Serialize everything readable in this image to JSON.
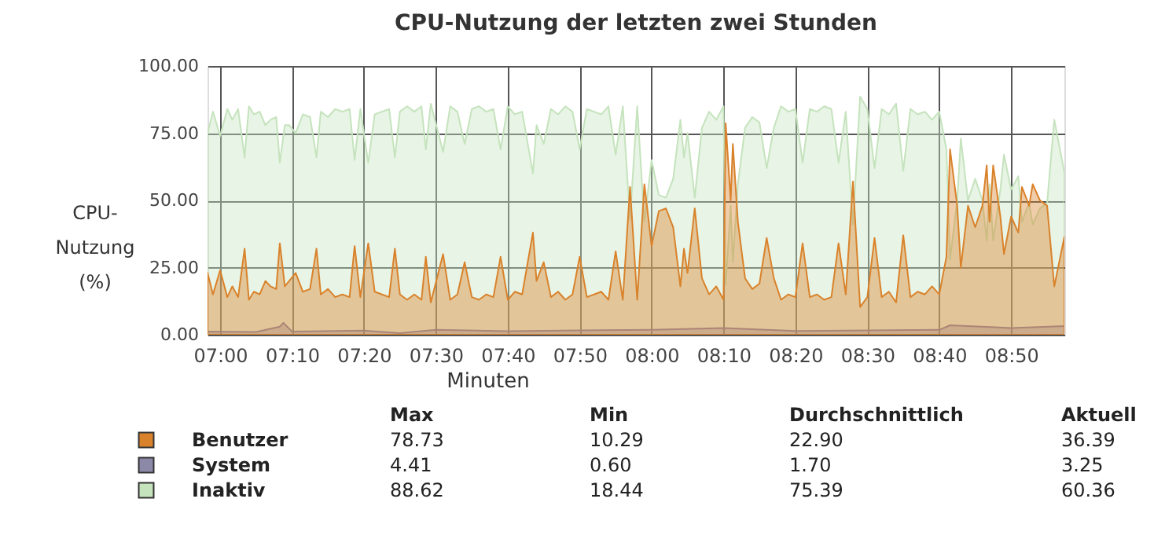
{
  "chart_data": {
    "type": "area",
    "title": "CPU-Nutzung der letzten zwei Stunden",
    "xlabel": "Minuten",
    "ylabel": "CPU-Nutzung (%)",
    "xlim": [
      6.9708,
      8.9567
    ],
    "ylim": [
      0,
      100
    ],
    "xticks": [
      {
        "value": 7,
        "label": "07:00"
      },
      {
        "value": 7.1667,
        "label": "07:10"
      },
      {
        "value": 7.3333,
        "label": "07:20"
      },
      {
        "value": 7.5,
        "label": "07:30"
      },
      {
        "value": 7.6667,
        "label": "07:40"
      },
      {
        "value": 7.8333,
        "label": "07:50"
      },
      {
        "value": 8,
        "label": "08:00"
      },
      {
        "value": 8.1667,
        "label": "08:10"
      },
      {
        "value": 8.3333,
        "label": "08:20"
      },
      {
        "value": 8.5,
        "label": "08:30"
      },
      {
        "value": 8.6667,
        "label": "08:40"
      },
      {
        "value": 8.8333,
        "label": "08:50"
      }
    ],
    "yticks": [
      {
        "value": 0,
        "label": "0.00"
      },
      {
        "value": 25,
        "label": "25.00"
      },
      {
        "value": 50,
        "label": "50.00"
      },
      {
        "value": 75,
        "label": "75.00"
      },
      {
        "value": 100,
        "label": "100.00"
      }
    ],
    "grid": true,
    "legend": "bottom",
    "x": [
      6.9708,
      6.9833,
      7,
      7.0167,
      7.0283,
      7.0417,
      7.0567,
      7.0667,
      7.0783,
      7.0917,
      7.105,
      7.1167,
      7.13,
      7.1383,
      7.15,
      7.16,
      7.175,
      7.1917,
      7.2083,
      7.2233,
      7.2333,
      7.25,
      7.2667,
      7.2833,
      7.3,
      7.3117,
      7.325,
      7.3433,
      7.3583,
      7.375,
      7.3917,
      7.405,
      7.4167,
      7.4333,
      7.45,
      7.4667,
      7.4767,
      7.4883,
      7.5167,
      7.5333,
      7.55,
      7.5667,
      7.5833,
      7.6,
      7.6167,
      7.6333,
      7.65,
      7.6667,
      7.6833,
      7.7,
      7.725,
      7.7333,
      7.75,
      7.7667,
      7.7833,
      7.8,
      7.8167,
      7.8333,
      7.85,
      7.8667,
      7.8833,
      7.9,
      7.9167,
      7.9333,
      7.95,
      7.9667,
      7.9833,
      8,
      8.0167,
      8.0333,
      8.05,
      8.0667,
      8.075,
      8.0833,
      8.1,
      8.1167,
      8.1333,
      8.15,
      8.1667,
      8.1717,
      8.1833,
      8.1883,
      8.2,
      8.2167,
      8.2333,
      8.25,
      8.2667,
      8.2833,
      8.3,
      8.3167,
      8.3333,
      8.35,
      8.3667,
      8.3833,
      8.4,
      8.4167,
      8.4333,
      8.45,
      8.4667,
      8.4833,
      8.5,
      8.5167,
      8.5333,
      8.55,
      8.5667,
      8.5833,
      8.6,
      8.6167,
      8.6333,
      8.65,
      8.6667,
      8.6833,
      8.6917,
      8.7083,
      8.7167,
      8.7333,
      8.75,
      8.7667,
      8.7767,
      8.7833,
      8.7917,
      8.8083,
      8.8167,
      8.8333,
      8.85,
      8.8583,
      8.875,
      8.8833,
      8.9,
      8.9167,
      8.9333,
      8.9567
    ],
    "series": [
      {
        "name": "Benutzer",
        "color": "#d9822b",
        "values": [
          23,
          15,
          24,
          14,
          18,
          14,
          32,
          13,
          16,
          15,
          20,
          18,
          17,
          34,
          18,
          20,
          23,
          16,
          17,
          32,
          15,
          17,
          14,
          15,
          14,
          33,
          14,
          34,
          16,
          15,
          14,
          32,
          15,
          13,
          15,
          13,
          29,
          12,
          30,
          13,
          15,
          27,
          14,
          13,
          15,
          14,
          29,
          13,
          16,
          15,
          38,
          20,
          27,
          14,
          16,
          13,
          15,
          29,
          14,
          15,
          16,
          13,
          31,
          13,
          55,
          13,
          56,
          33,
          46,
          47,
          40,
          18,
          32,
          23,
          47,
          21,
          15,
          18,
          13,
          78.73,
          50,
          71,
          42,
          21,
          17,
          19,
          36,
          21,
          13,
          15,
          14,
          34,
          14,
          15,
          13,
          14,
          34,
          15,
          57,
          10.29,
          14,
          36,
          14,
          16,
          12,
          37,
          14,
          16,
          15,
          18,
          15,
          29,
          69,
          48,
          25,
          48,
          40,
          48,
          63,
          42,
          63,
          44,
          30,
          44,
          38,
          55,
          48,
          56,
          50,
          48,
          18,
          36.39
        ]
      },
      {
        "name": "System",
        "color": "#8c88a8",
        "x": [
          6.9708,
          7.0833,
          7.1383,
          7.1467,
          7.1667,
          7.3333,
          7.4167,
          7.5,
          7.6667,
          7.8333,
          8,
          8.1667,
          8.3333,
          8.5,
          8.6667,
          8.6917,
          8.8333,
          8.9567
        ],
        "values": [
          1.2,
          1,
          3,
          4.41,
          1.2,
          1.5,
          0.6,
          1.8,
          1.3,
          1.6,
          1.8,
          2.5,
          1.4,
          1.6,
          1.8,
          3.5,
          2.5,
          3.25
        ]
      },
      {
        "name": "Inaktiv",
        "color": "#c5e3bd",
        "values": [
          75,
          83,
          74,
          84,
          80,
          84,
          66,
          85,
          82,
          83,
          78,
          80,
          81,
          64,
          78,
          78,
          75,
          82,
          81,
          66,
          83,
          81,
          84,
          83,
          84,
          65,
          84,
          64,
          82,
          83,
          84,
          66,
          83,
          85,
          83,
          85,
          69,
          86,
          68,
          85,
          83,
          71,
          84,
          85,
          83,
          84,
          69,
          85,
          82,
          83,
          60,
          78,
          71,
          84,
          82,
          85,
          83,
          69,
          84,
          83,
          82,
          85,
          67,
          85,
          43,
          85,
          42,
          65,
          52,
          51,
          58,
          80,
          66,
          75,
          51,
          77,
          83,
          80,
          85,
          18.44,
          48,
          27,
          56,
          77,
          81,
          79,
          62,
          77,
          85,
          83,
          84,
          64,
          84,
          83,
          85,
          84,
          64,
          83,
          41,
          88.62,
          84,
          62,
          84,
          82,
          86,
          61,
          84,
          82,
          83,
          80,
          83,
          69,
          28,
          50,
          73,
          50,
          58,
          50,
          35,
          56,
          35,
          54,
          67,
          54,
          59,
          42,
          49,
          41,
          47,
          49,
          80,
          60.36
        ]
      }
    ],
    "annotations": [
      "Max",
      "Min",
      "Durchschnittlich",
      "Aktuell",
      "78.73",
      "10.29",
      "22.90",
      "36.39",
      "4.41",
      "0.60",
      "1.70",
      "3.25",
      "88.62",
      "18.44",
      "75.39",
      "60.36"
    ]
  }
}
